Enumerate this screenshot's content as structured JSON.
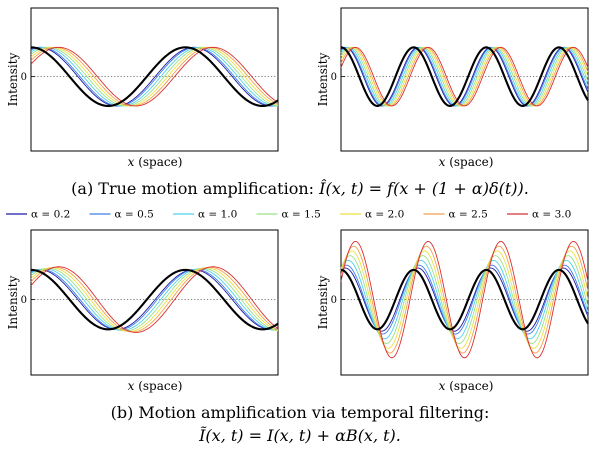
{
  "chart_data": [
    {
      "type": "line",
      "panel": "a-left",
      "xlabel": "x (space)",
      "ylabel": "Intensity",
      "ytick": "0",
      "mode": "true",
      "cycles": 1.6,
      "phase_step": 0.045,
      "series": [
        {
          "name": "α = 0.2",
          "alpha": 0.2
        },
        {
          "name": "α = 0.5",
          "alpha": 0.5
        },
        {
          "name": "α = 1.0",
          "alpha": 1.0
        },
        {
          "name": "α = 1.5",
          "alpha": 1.5
        },
        {
          "name": "α = 2.0",
          "alpha": 2.0
        },
        {
          "name": "α = 2.5",
          "alpha": 2.5
        },
        {
          "name": "α = 3.0",
          "alpha": 3.0
        }
      ]
    },
    {
      "type": "line",
      "panel": "a-right",
      "xlabel": "x (space)",
      "ylabel": "Intensity",
      "ytick": "0",
      "mode": "true",
      "cycles": 3.4,
      "phase_step": 0.05,
      "series": [
        {
          "name": "α = 0.2",
          "alpha": 0.2
        },
        {
          "name": "α = 0.5",
          "alpha": 0.5
        },
        {
          "name": "α = 1.0",
          "alpha": 1.0
        },
        {
          "name": "α = 1.5",
          "alpha": 1.5
        },
        {
          "name": "α = 2.0",
          "alpha": 2.0
        },
        {
          "name": "α = 2.5",
          "alpha": 2.5
        },
        {
          "name": "α = 3.0",
          "alpha": 3.0
        }
      ]
    },
    {
      "type": "line",
      "panel": "b-left",
      "xlabel": "x (space)",
      "ylabel": "Intensity",
      "ytick": "0",
      "mode": "filter",
      "cycles": 1.6,
      "phase_step": 0.045,
      "amp_step": 0.035,
      "series": [
        {
          "name": "α = 0.2",
          "alpha": 0.2
        },
        {
          "name": "α = 0.5",
          "alpha": 0.5
        },
        {
          "name": "α = 1.0",
          "alpha": 1.0
        },
        {
          "name": "α = 1.5",
          "alpha": 1.5
        },
        {
          "name": "α = 2.0",
          "alpha": 2.0
        },
        {
          "name": "α = 2.5",
          "alpha": 2.5
        },
        {
          "name": "α = 3.0",
          "alpha": 3.0
        }
      ]
    },
    {
      "type": "line",
      "panel": "b-right",
      "xlabel": "x (space)",
      "ylabel": "Intensity",
      "ytick": "0",
      "mode": "filter",
      "cycles": 3.4,
      "phase_step": 0.05,
      "amp_step": 0.32,
      "series": [
        {
          "name": "α = 0.2",
          "alpha": 0.2
        },
        {
          "name": "α = 0.5",
          "alpha": 0.5
        },
        {
          "name": "α = 1.0",
          "alpha": 1.0
        },
        {
          "name": "α = 1.5",
          "alpha": 1.5
        },
        {
          "name": "α = 2.0",
          "alpha": 2.0
        },
        {
          "name": "α = 2.5",
          "alpha": 2.5
        },
        {
          "name": "α = 3.0",
          "alpha": 3.0
        }
      ]
    }
  ],
  "captions": {
    "a_prefix": "(a) True motion amplification: ",
    "a_formula": "Î(x, t) = f(x + (1 + α)δ(t)).",
    "b_line1": "(b) Motion amplification via temporal filtering:",
    "b_line2": "Ĩ(x, t) = I(x, t) + αB(x, t)."
  },
  "legend": [
    {
      "label": "α = 0.2",
      "color": "#1a1aa8"
    },
    {
      "label": "α = 0.5",
      "color": "#3f7fe6"
    },
    {
      "label": "α = 1.0",
      "color": "#4fd3ea"
    },
    {
      "label": "α = 1.5",
      "color": "#9be08a"
    },
    {
      "label": "α = 2.0",
      "color": "#eee040"
    },
    {
      "label": "α = 2.5",
      "color": "#f0a050"
    },
    {
      "label": "α = 3.0",
      "color": "#d83030"
    }
  ],
  "colors": {
    "original": "#000000",
    "zero_line": "#555555"
  }
}
